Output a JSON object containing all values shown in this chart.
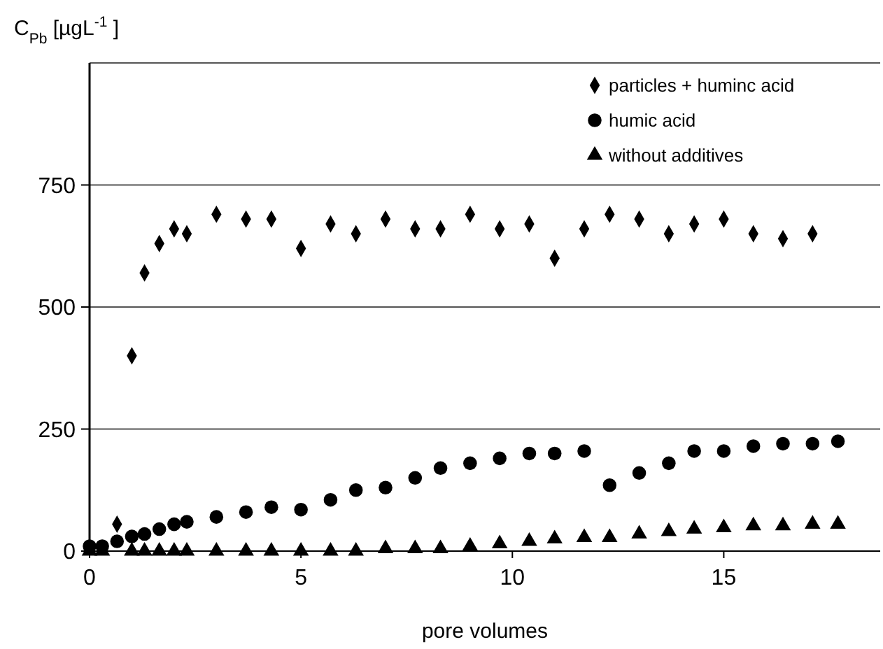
{
  "chart_data": {
    "type": "scatter",
    "xlabel": "pore volumes",
    "ylabel": "C$_{Pb}$ [µgL$^{-1}$]",
    "xlim": [
      0,
      18.7
    ],
    "xticks": [
      0,
      5,
      10,
      15
    ],
    "ylim": [
      0,
      1000
    ],
    "yticks": [
      0,
      250,
      500,
      750
    ],
    "grid": "y",
    "legend": "top right",
    "series": [
      {
        "name": "particles + huminc acid",
        "color": "#000000",
        "marker": "diamond",
        "x": [
          0.65,
          1.0,
          1.3,
          1.65,
          2.0,
          2.3,
          3.0,
          3.7,
          4.3,
          5.0,
          5.7,
          6.3,
          7.0,
          7.7,
          8.3,
          9.0,
          9.7,
          10.4,
          11.0,
          11.7,
          12.3,
          13.0,
          13.7,
          14.3,
          15.0,
          15.7,
          16.4,
          17.1
        ],
        "values": [
          55,
          400,
          570,
          630,
          660,
          650,
          690,
          680,
          680,
          620,
          670,
          650,
          680,
          660,
          660,
          690,
          660,
          670,
          600,
          660,
          690,
          680,
          650,
          670,
          680,
          650,
          640,
          650
        ]
      },
      {
        "name": "humic acid",
        "color": "#000000",
        "marker": "circle",
        "x": [
          0,
          0.3,
          0.65,
          1.0,
          1.3,
          1.65,
          2.0,
          2.3,
          3.0,
          3.7,
          4.3,
          5.0,
          5.7,
          6.3,
          7.0,
          7.7,
          8.3,
          9.0,
          9.7,
          10.4,
          11.0,
          11.7,
          12.3,
          13.0,
          13.7,
          14.3,
          15.0,
          15.7,
          16.4,
          17.1,
          17.7
        ],
        "values": [
          10,
          10,
          20,
          30,
          35,
          45,
          55,
          60,
          70,
          80,
          90,
          85,
          105,
          125,
          130,
          150,
          170,
          180,
          190,
          200,
          200,
          205,
          135,
          160,
          180,
          205,
          205,
          215,
          220,
          220,
          225
        ]
      },
      {
        "name": "without additives",
        "color": "#000000",
        "marker": "triangle",
        "x": [
          0,
          0.3,
          1.0,
          1.3,
          1.65,
          2.0,
          2.3,
          3.0,
          3.7,
          4.3,
          5.0,
          5.7,
          6.3,
          7.0,
          7.7,
          8.3,
          9.0,
          9.7,
          10.4,
          11.0,
          11.7,
          12.3,
          13.0,
          13.7,
          14.3,
          15.0,
          15.7,
          16.4,
          17.1,
          17.7
        ],
        "values": [
          0,
          0,
          0,
          0,
          0,
          0,
          0,
          0,
          0,
          0,
          0,
          0,
          0,
          5,
          5,
          5,
          10,
          15,
          20,
          25,
          28,
          28,
          35,
          40,
          45,
          48,
          52,
          52,
          55,
          55
        ]
      }
    ]
  }
}
